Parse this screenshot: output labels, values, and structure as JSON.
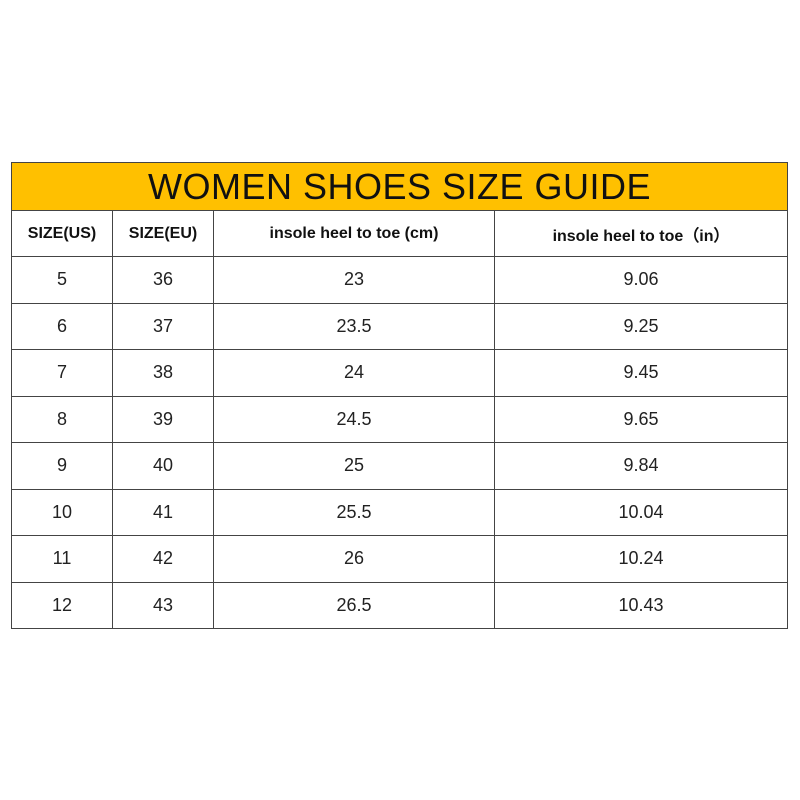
{
  "title": "WOMEN SHOES SIZE GUIDE",
  "title_bg": "#FFC000",
  "headers": [
    "SIZE(US)",
    "SIZE(EU)",
    "insole heel to toe (cm)",
    "insole heel to toe（in）"
  ],
  "rows": [
    [
      "5",
      "36",
      "23",
      "9.06"
    ],
    [
      "6",
      "37",
      "23.5",
      "9.25"
    ],
    [
      "7",
      "38",
      "24",
      "9.45"
    ],
    [
      "8",
      "39",
      "24.5",
      "9.65"
    ],
    [
      "9",
      "40",
      "25",
      "9.84"
    ],
    [
      "10",
      "41",
      "25.5",
      "10.04"
    ],
    [
      "11",
      "42",
      "26",
      "10.24"
    ],
    [
      "12",
      "43",
      "26.5",
      "10.43"
    ]
  ]
}
